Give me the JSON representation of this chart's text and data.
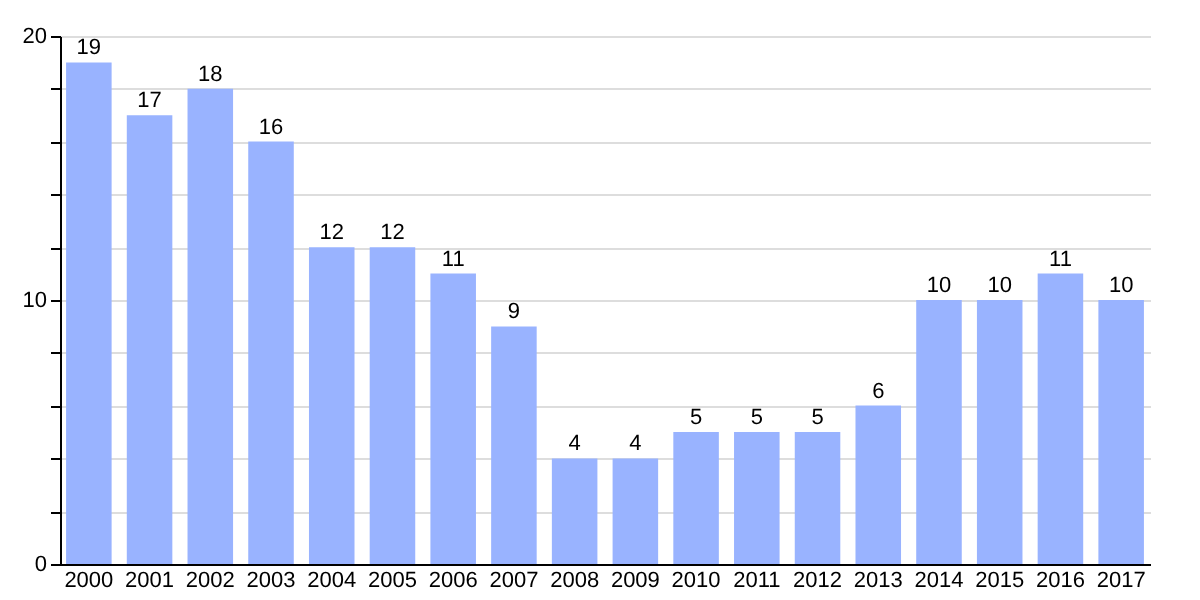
{
  "chart_data": {
    "type": "bar",
    "categories": [
      "2000",
      "2001",
      "2002",
      "2003",
      "2004",
      "2005",
      "2006",
      "2007",
      "2008",
      "2009",
      "2010",
      "2011",
      "2012",
      "2013",
      "2014",
      "2015",
      "2016",
      "2017"
    ],
    "values": [
      19,
      17,
      18,
      16,
      12,
      12,
      11,
      9,
      4,
      4,
      5,
      5,
      5,
      6,
      10,
      10,
      11,
      10
    ],
    "color": "#99b3ff",
    "ylim": [
      0,
      20
    ],
    "yticks": [
      0,
      {
        "value": 2,
        "label": null
      },
      {
        "value": 4,
        "label": null
      },
      {
        "value": 6,
        "label": null
      },
      {
        "value": 8,
        "label": null
      },
      10,
      {
        "value": 12,
        "label": null
      },
      {
        "value": 14,
        "label": null
      },
      {
        "value": 16,
        "label": null
      },
      {
        "value": 18,
        "label": null
      },
      20
    ],
    "grid": "y",
    "data_labels": true
  }
}
